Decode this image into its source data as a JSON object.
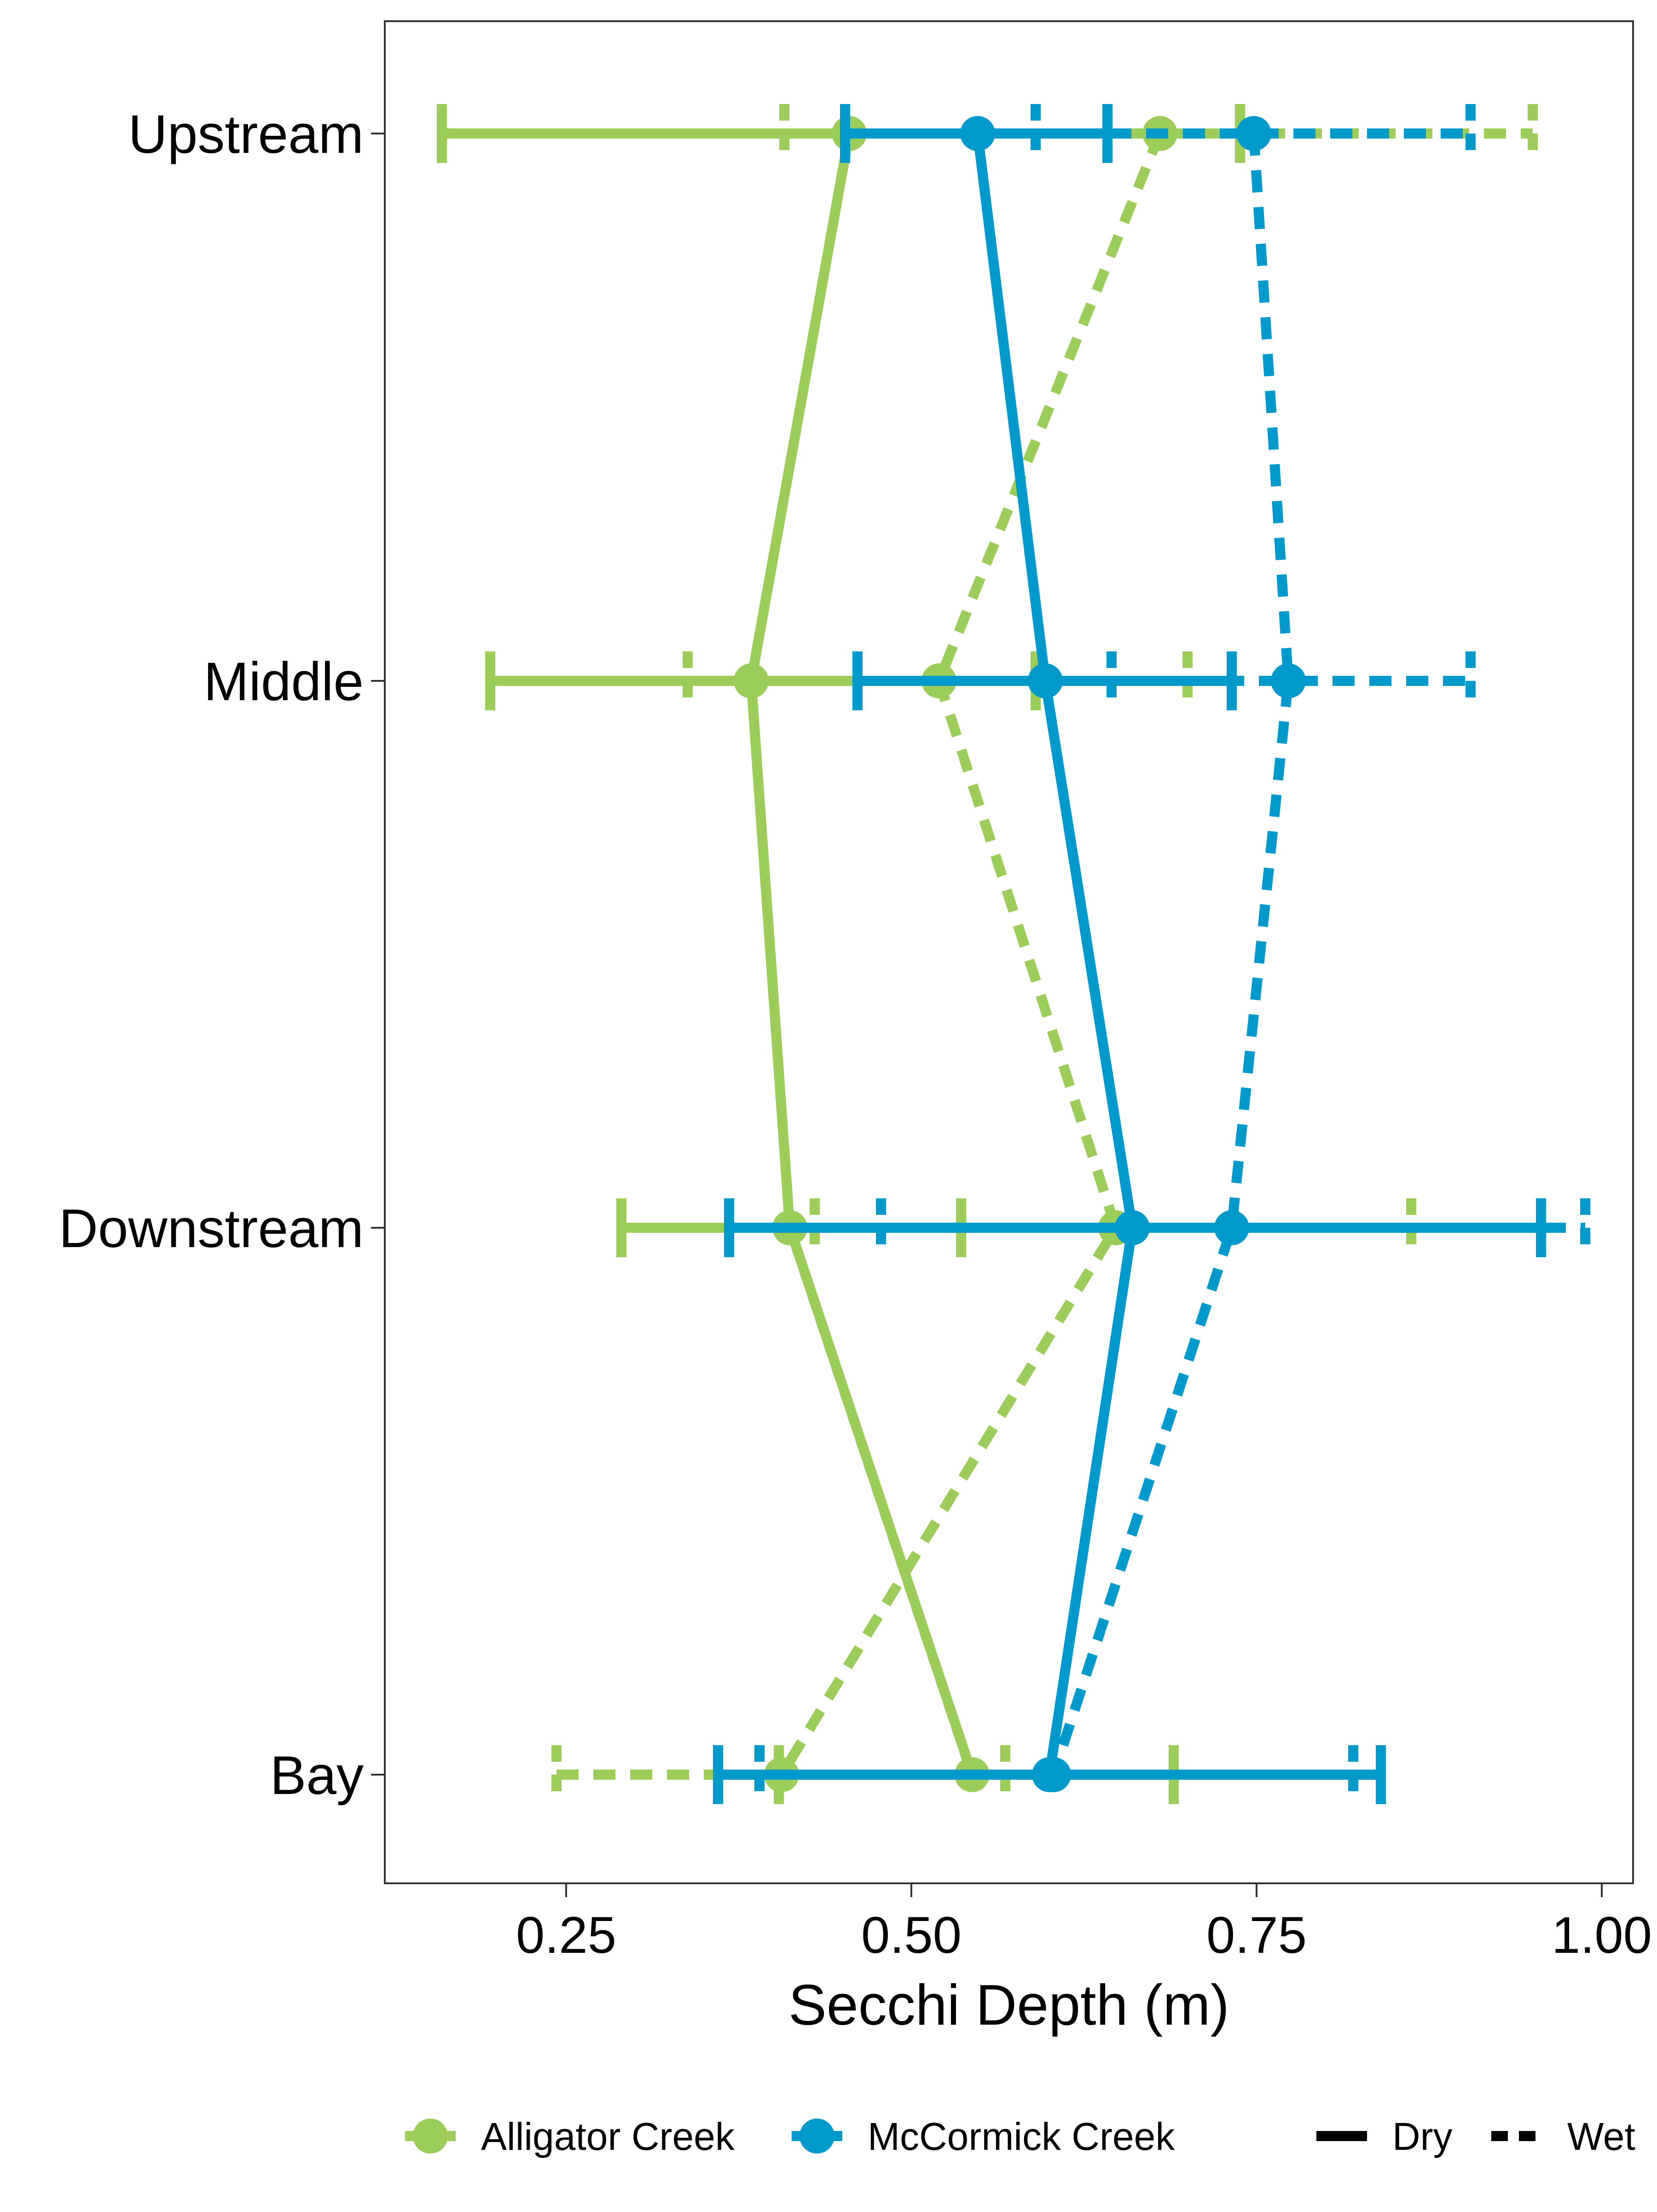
{
  "chart_data": {
    "type": "line",
    "orientation": "horizontal",
    "title": "",
    "xlabel": "Secchi Depth (m)",
    "ylabel": "",
    "xlim": [
      0.12,
      1.0
    ],
    "x_ticks": [
      0.25,
      0.5,
      0.75,
      1.0
    ],
    "x_tick_labels": [
      "0.25",
      "0.50",
      "0.75",
      "1.00"
    ],
    "categories": [
      "Upstream",
      "Middle",
      "Downstream",
      "Bay"
    ],
    "grid": false,
    "legend_position": "bottom",
    "colors": {
      "Alligator Creek": "#9ccc5a",
      "McCormick Creek": "#0099cc"
    },
    "series": [
      {
        "name": "Alligator Creek",
        "season": "Dry",
        "color": "#9ccc5a",
        "dash": "solid",
        "values": [
          0.455,
          0.384,
          0.412,
          0.544
        ],
        "low": [
          0.16,
          0.195,
          0.29,
          0.404
        ],
        "high": [
          0.738,
          0.59,
          0.536,
          0.69
        ]
      },
      {
        "name": "Alligator Creek",
        "season": "Wet",
        "color": "#9ccc5a",
        "dash": "dashed",
        "values": [
          0.68,
          0.52,
          0.648,
          0.406
        ],
        "low": [
          0.408,
          0.338,
          0.43,
          0.243
        ],
        "high": [
          0.95,
          0.7,
          0.862,
          0.568
        ]
      },
      {
        "name": "McCormick Creek",
        "season": "Dry",
        "color": "#0099cc",
        "dash": "solid",
        "values": [
          0.548,
          0.597,
          0.66,
          0.6
        ],
        "low": [
          0.452,
          0.461,
          0.368,
          0.36
        ],
        "high": [
          0.642,
          0.732,
          0.956,
          0.84
        ]
      },
      {
        "name": "McCormick Creek",
        "season": "Wet",
        "color": "#0099cc",
        "dash": "dashed",
        "values": [
          0.748,
          0.773,
          0.732,
          0.603
        ],
        "low": [
          0.59,
          0.645,
          0.478,
          0.39
        ],
        "high": [
          0.905,
          0.905,
          0.988,
          0.82
        ]
      }
    ]
  },
  "legend": {
    "creeks": [
      {
        "label": "Alligator Creek",
        "color": "#9ccc5a"
      },
      {
        "label": "McCormick Creek",
        "color": "#0099cc"
      }
    ],
    "seasons": [
      {
        "label": "Dry",
        "dash": "solid"
      },
      {
        "label": "Wet",
        "dash": "dashed"
      }
    ]
  }
}
